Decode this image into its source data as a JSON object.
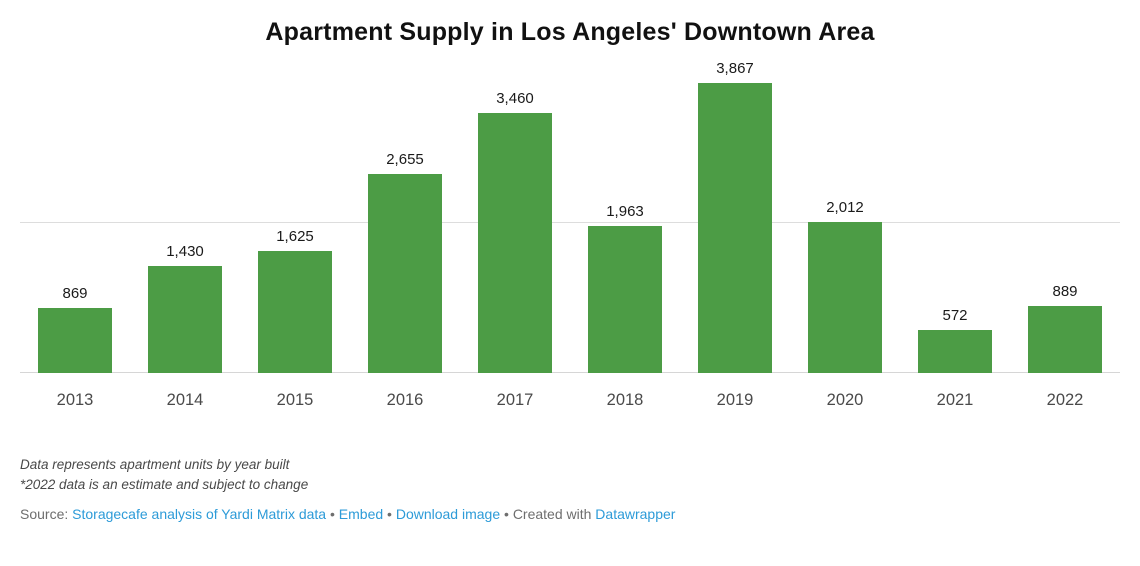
{
  "title": "Apartment Supply in Los Angeles' Downtown Area",
  "chart_data": {
    "type": "bar",
    "title": "Apartment Supply in Los Angeles' Downtown Area",
    "categories": [
      "2013",
      "2014",
      "2015",
      "2016",
      "2017",
      "2018",
      "2019",
      "2020",
      "2021",
      "2022"
    ],
    "values": [
      869,
      1430,
      1625,
      2655,
      3460,
      1963,
      3867,
      2012,
      572,
      889
    ],
    "value_labels": [
      "869",
      "1,430",
      "1,625",
      "2,655",
      "3,460",
      "1,963",
      "3,867",
      "2,012",
      "572",
      "889"
    ],
    "xlabel": "",
    "ylabel": "",
    "ylim": [
      0,
      4000
    ],
    "gridline_values": [
      2000
    ],
    "bar_color": "#4c9c45",
    "grid": "single horizontal gridline plus baseline",
    "legend": "none",
    "value_labels_position": "above bars"
  },
  "footnotes": {
    "line1": "Data represents apartment units by year built",
    "line2": "*2022 data is an estimate and subject to change"
  },
  "source": {
    "prefix": "Source: ",
    "source_link": "Storagecafe analysis of Yardi Matrix data",
    "separator": "•",
    "embed_link": "Embed",
    "download_link": "Download image",
    "created_with": "Created with",
    "datawrapper_link": "Datawrapper",
    "link_color": "#2d9bd8"
  }
}
